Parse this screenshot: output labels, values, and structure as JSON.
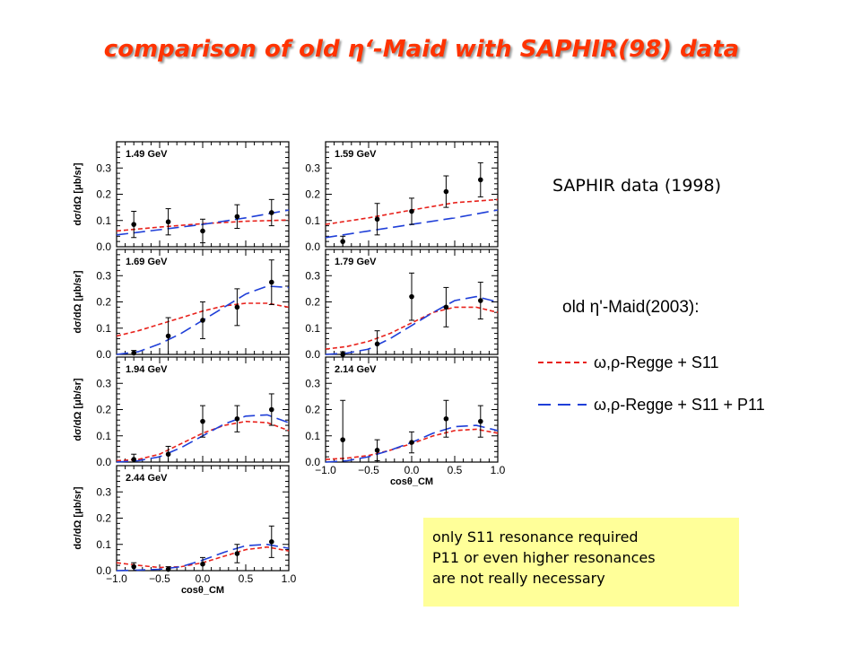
{
  "title": "comparison of old η‘-Maid with SAPHIR(98) data",
  "saphir_label": "SAPHIR data (1998)",
  "maid_label": "old η'-Maid(2003):",
  "legend": [
    {
      "label": "ω,ρ-Regge + S11",
      "color": "#e8211b",
      "dash": "short"
    },
    {
      "label": "ω,ρ-Regge + S11 + P11",
      "color": "#1f3fd8",
      "dash": "long"
    }
  ],
  "note": [
    "only S11 resonance required",
    "P11 or even higher resonances",
    "are not really necessary"
  ],
  "chart_data": {
    "type": "scatter",
    "xlabel": "cosθ_CM",
    "ylabel": "dσ/dΩ [μb/sr]",
    "xlim": [
      -1.0,
      1.0
    ],
    "ylim": [
      0.0,
      0.4
    ],
    "xticks": [
      "−1.0",
      "−0.5",
      "0.0",
      "0.5",
      "1.0"
    ],
    "yticks": [
      "0.0",
      "0.1",
      "0.2",
      "0.3"
    ],
    "panels": [
      {
        "energy": "1.49 GeV",
        "data": [
          {
            "x": -0.8,
            "y": 0.085,
            "err": 0.05
          },
          {
            "x": -0.4,
            "y": 0.095,
            "err": 0.05
          },
          {
            "x": 0.0,
            "y": 0.06,
            "err": 0.045
          },
          {
            "x": 0.4,
            "y": 0.115,
            "err": 0.045
          },
          {
            "x": 0.8,
            "y": 0.13,
            "err": 0.05
          }
        ],
        "red": {
          "x": [
            -1.0,
            -0.5,
            0.0,
            0.5,
            1.0
          ],
          "y": [
            0.06,
            0.075,
            0.088,
            0.097,
            0.102
          ]
        },
        "blue": {
          "x": [
            -1.0,
            -0.5,
            0.0,
            0.5,
            1.0
          ],
          "y": [
            0.045,
            0.065,
            0.085,
            0.11,
            0.14
          ]
        }
      },
      {
        "energy": "1.59 GeV",
        "data": [
          {
            "x": -0.8,
            "y": 0.02,
            "err": 0.02
          },
          {
            "x": -0.4,
            "y": 0.105,
            "err": 0.06
          },
          {
            "x": 0.0,
            "y": 0.135,
            "err": 0.05
          },
          {
            "x": 0.4,
            "y": 0.21,
            "err": 0.06
          },
          {
            "x": 0.8,
            "y": 0.255,
            "err": 0.065
          }
        ],
        "red": {
          "x": [
            -1.0,
            -0.5,
            0.0,
            0.5,
            1.0
          ],
          "y": [
            0.085,
            0.11,
            0.14,
            0.168,
            0.18
          ]
        },
        "blue": {
          "x": [
            -1.0,
            -0.5,
            0.0,
            0.5,
            1.0
          ],
          "y": [
            0.035,
            0.06,
            0.085,
            0.11,
            0.14
          ]
        }
      },
      {
        "energy": "1.69 GeV",
        "data": [
          {
            "x": -0.8,
            "y": 0.005,
            "err": 0.01
          },
          {
            "x": -0.4,
            "y": 0.07,
            "err": 0.07
          },
          {
            "x": 0.0,
            "y": 0.13,
            "err": 0.07
          },
          {
            "x": 0.4,
            "y": 0.18,
            "err": 0.07
          },
          {
            "x": 0.8,
            "y": 0.275,
            "err": 0.085
          }
        ],
        "red": {
          "x": [
            -1.0,
            -0.75,
            -0.5,
            -0.25,
            0.0,
            0.25,
            0.5,
            0.75,
            1.0
          ],
          "y": [
            0.07,
            0.09,
            0.115,
            0.14,
            0.165,
            0.185,
            0.195,
            0.195,
            0.18
          ]
        },
        "blue": {
          "x": [
            -1.0,
            -0.75,
            -0.5,
            -0.25,
            0.0,
            0.25,
            0.5,
            0.75,
            1.0
          ],
          "y": [
            0.0,
            0.01,
            0.04,
            0.08,
            0.13,
            0.18,
            0.23,
            0.26,
            0.255
          ]
        }
      },
      {
        "energy": "1.79 GeV",
        "data": [
          {
            "x": -0.8,
            "y": 0.0,
            "err": 0.01
          },
          {
            "x": -0.4,
            "y": 0.04,
            "err": 0.05
          },
          {
            "x": 0.0,
            "y": 0.22,
            "err": 0.09
          },
          {
            "x": 0.4,
            "y": 0.18,
            "err": 0.075
          },
          {
            "x": 0.8,
            "y": 0.205,
            "err": 0.07
          }
        ],
        "red": {
          "x": [
            -1.0,
            -0.75,
            -0.5,
            -0.25,
            0.0,
            0.25,
            0.5,
            0.75,
            1.0
          ],
          "y": [
            0.02,
            0.03,
            0.05,
            0.08,
            0.12,
            0.16,
            0.18,
            0.18,
            0.16
          ]
        },
        "blue": {
          "x": [
            -1.0,
            -0.75,
            -0.5,
            -0.25,
            0.0,
            0.25,
            0.5,
            0.75,
            1.0
          ],
          "y": [
            0.0,
            0.005,
            0.02,
            0.06,
            0.11,
            0.16,
            0.205,
            0.22,
            0.2
          ]
        }
      },
      {
        "energy": "1.94 GeV",
        "data": [
          {
            "x": -0.8,
            "y": 0.01,
            "err": 0.02
          },
          {
            "x": -0.4,
            "y": 0.03,
            "err": 0.03
          },
          {
            "x": 0.0,
            "y": 0.155,
            "err": 0.06
          },
          {
            "x": 0.4,
            "y": 0.165,
            "err": 0.05
          },
          {
            "x": 0.8,
            "y": 0.2,
            "err": 0.06
          }
        ],
        "red": {
          "x": [
            -1.0,
            -0.75,
            -0.5,
            -0.25,
            0.0,
            0.25,
            0.5,
            0.75,
            1.0
          ],
          "y": [
            0.005,
            0.01,
            0.03,
            0.07,
            0.11,
            0.14,
            0.155,
            0.15,
            0.12
          ]
        },
        "blue": {
          "x": [
            -1.0,
            -0.75,
            -0.5,
            -0.25,
            0.0,
            0.25,
            0.5,
            0.75,
            1.0
          ],
          "y": [
            0.0,
            0.005,
            0.02,
            0.055,
            0.1,
            0.145,
            0.175,
            0.18,
            0.15
          ]
        }
      },
      {
        "energy": "2.14 GeV",
        "data": [
          {
            "x": -0.8,
            "y": 0.085,
            "err": 0.15
          },
          {
            "x": -0.4,
            "y": 0.045,
            "err": 0.04
          },
          {
            "x": 0.0,
            "y": 0.075,
            "err": 0.04
          },
          {
            "x": 0.4,
            "y": 0.165,
            "err": 0.07
          },
          {
            "x": 0.8,
            "y": 0.155,
            "err": 0.06
          }
        ],
        "red": {
          "x": [
            -1.0,
            -0.75,
            -0.5,
            -0.25,
            0.0,
            0.25,
            0.5,
            0.75,
            1.0
          ],
          "y": [
            0.01,
            0.015,
            0.025,
            0.045,
            0.07,
            0.1,
            0.12,
            0.125,
            0.11
          ]
        },
        "blue": {
          "x": [
            -1.0,
            -0.75,
            -0.5,
            -0.25,
            0.0,
            0.25,
            0.5,
            0.75,
            1.0
          ],
          "y": [
            0.0,
            0.005,
            0.02,
            0.045,
            0.075,
            0.11,
            0.135,
            0.14,
            0.12
          ]
        }
      },
      {
        "energy": "2.44 GeV",
        "data": [
          {
            "x": -0.8,
            "y": 0.015,
            "err": 0.015
          },
          {
            "x": -0.4,
            "y": 0.005,
            "err": 0.01
          },
          {
            "x": 0.0,
            "y": 0.025,
            "err": 0.025
          },
          {
            "x": 0.4,
            "y": 0.065,
            "err": 0.035
          },
          {
            "x": 0.8,
            "y": 0.11,
            "err": 0.06
          }
        ],
        "red": {
          "x": [
            -1.0,
            -0.75,
            -0.5,
            -0.25,
            0.0,
            0.25,
            0.5,
            0.75,
            1.0
          ],
          "y": [
            0.03,
            0.02,
            0.012,
            0.015,
            0.03,
            0.055,
            0.08,
            0.09,
            0.075
          ]
        },
        "blue": {
          "x": [
            -1.0,
            -0.75,
            -0.5,
            -0.25,
            0.0,
            0.25,
            0.5,
            0.75,
            1.0
          ],
          "y": [
            0.0,
            0.002,
            0.005,
            0.015,
            0.04,
            0.07,
            0.095,
            0.1,
            0.085
          ]
        }
      }
    ]
  }
}
